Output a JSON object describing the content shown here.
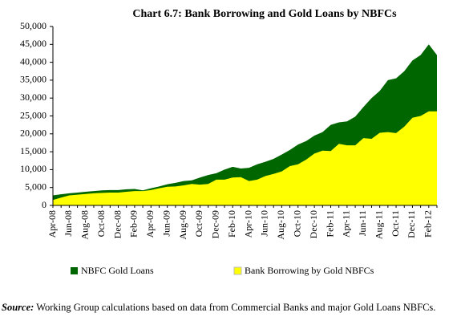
{
  "chart_data": {
    "type": "area",
    "title": "Chart 6.7: Bank Borrowing and Gold Loans by NBFCs",
    "categories": [
      "Apr-08",
      null,
      "Jun-08",
      null,
      "Aug-08",
      null,
      "Oct-08",
      null,
      "Dec-08",
      null,
      "Feb-09",
      null,
      "Apr-09",
      null,
      "Jun-09",
      null,
      "Aug-09",
      null,
      "Oct-09",
      null,
      "Dec-09",
      null,
      "Feb-10",
      null,
      "Apr-10",
      null,
      "Jun-10",
      null,
      "Aug-10",
      null,
      "Oct-10",
      null,
      "Dec-10",
      null,
      "Feb-11",
      null,
      "Apr-11",
      null,
      "Jun-11",
      null,
      "Aug-11",
      null,
      "Oct-11",
      null,
      "Dec-11",
      null,
      "Feb-12",
      null
    ],
    "series": [
      {
        "name": "NBFC Gold Loans",
        "color": "#006600",
        "values": [
          2800,
          3100,
          3400,
          3600,
          3800,
          4000,
          4200,
          4300,
          4300,
          4500,
          4600,
          4200,
          4800,
          5300,
          5900,
          6300,
          6800,
          7000,
          7800,
          8500,
          9000,
          10000,
          10800,
          10300,
          10500,
          11500,
          12200,
          13000,
          14200,
          15500,
          17000,
          18000,
          19500,
          20500,
          22500,
          23200,
          23500,
          24800,
          27500,
          30000,
          32000,
          35000,
          35500,
          37500,
          40500,
          42000,
          45000,
          42000
        ]
      },
      {
        "name": "Bank Borrowing by Gold NBFCs",
        "color": "#ffff00",
        "values": [
          1500,
          2200,
          2800,
          3000,
          3200,
          3400,
          3500,
          3600,
          3600,
          3800,
          4000,
          4000,
          4300,
          4800,
          5200,
          5300,
          5600,
          6000,
          5800,
          6000,
          7200,
          7200,
          7800,
          7900,
          6800,
          7200,
          8200,
          8800,
          9500,
          11000,
          11500,
          12800,
          14500,
          15300,
          15200,
          17200,
          16800,
          16800,
          18800,
          18600,
          20300,
          20500,
          20200,
          22000,
          24500,
          25000,
          26300,
          26300
        ]
      }
    ],
    "ylim": [
      0,
      50000
    ],
    "yticks": [
      0,
      {
        "value": 5000,
        "label": "5,000"
      },
      {
        "value": 10000,
        "label": "10,000"
      },
      {
        "value": 15000,
        "label": "15,000"
      },
      {
        "value": 20000,
        "label": "20,000"
      },
      {
        "value": 25000,
        "label": "25,000"
      },
      {
        "value": 30000,
        "label": "30,000"
      },
      {
        "value": 35000,
        "label": "35,000"
      },
      {
        "value": 40000,
        "label": "40,000"
      },
      {
        "value": 45000,
        "label": "45,000"
      },
      {
        "value": 50000,
        "label": "50,000"
      }
    ],
    "source_label": "Source:",
    "source": "Working Group calculations based on data from Commercial Banks and major Gold Loans NBFCs."
  }
}
